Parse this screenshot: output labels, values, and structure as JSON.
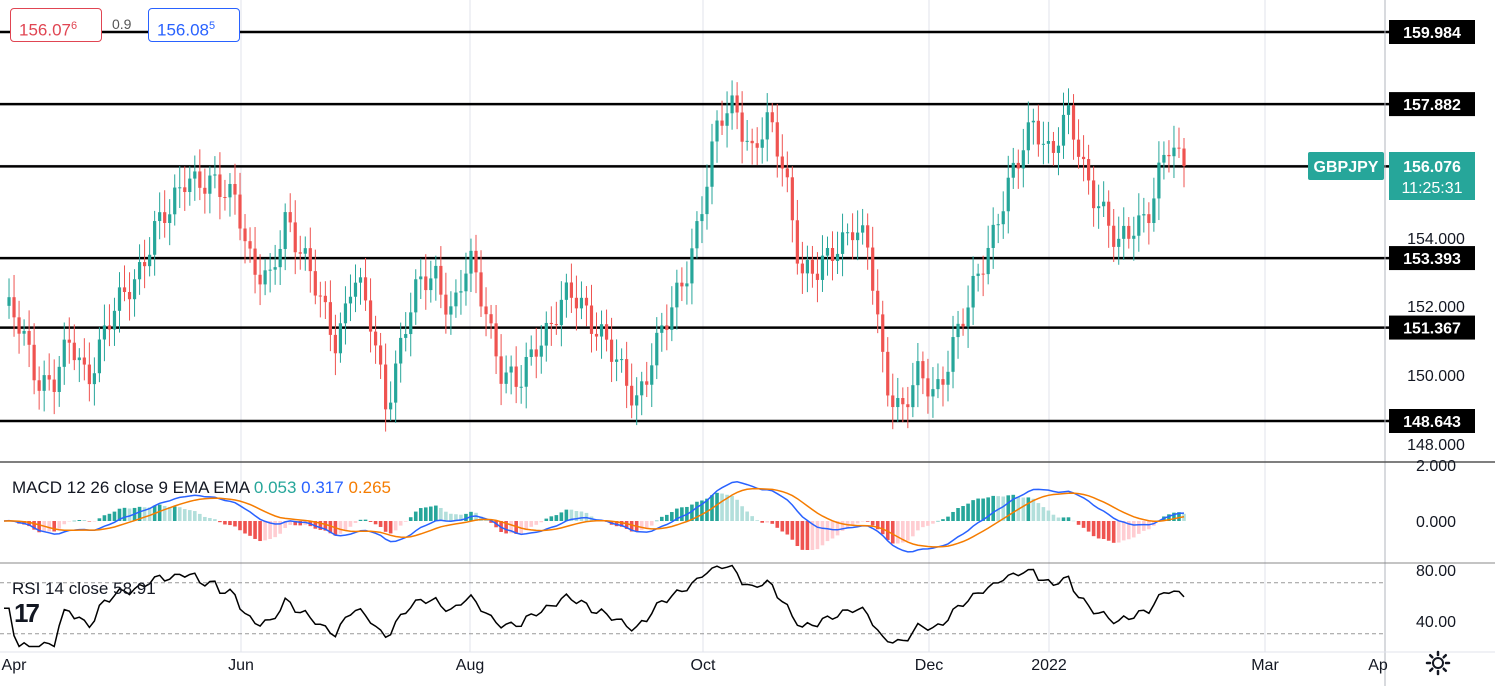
{
  "symbol": "GBPJPY",
  "bid": {
    "main": "156.07",
    "small": "6"
  },
  "ask": {
    "main": "156.08",
    "small": "5"
  },
  "spread": "0.9",
  "last_price": "156.076",
  "countdown": "11:25:31",
  "colors": {
    "up": "#26a69a",
    "down": "#ef5350",
    "macd": "#2962ff",
    "signal": "#f57c00",
    "rsi": "#000000",
    "symbol_label": "#26a69a"
  },
  "macd_legend": {
    "label": "MACD 12 26 close 9 EMA EMA",
    "hist": "0.053",
    "macd": "0.317",
    "signal": "0.265"
  },
  "rsi_legend": {
    "label": "RSI 14 close",
    "value": "58.91"
  },
  "chart_data": {
    "type": "candlestick",
    "price_axis": {
      "ticks": [
        "154.000",
        "152.000",
        "150.000",
        "148.000"
      ],
      "range": [
        147.4,
        161.0
      ]
    },
    "x_ticks": [
      "Apr",
      "Jun",
      "Aug",
      "Oct",
      "Dec",
      "2022",
      "Mar",
      "Ap"
    ],
    "horizontal_levels": [
      159.984,
      157.882,
      156.067,
      153.393,
      151.367,
      148.643
    ],
    "close_path": [
      [
        "Apr",
        152.0
      ],
      [
        "Apr",
        151.2
      ],
      [
        "Apr",
        150.0
      ],
      [
        "Apr",
        149.8
      ],
      [
        "Apr",
        150.8
      ],
      [
        "Apr",
        150.0
      ],
      [
        "Apr",
        151.2
      ],
      [
        "Apr",
        152.0
      ],
      [
        "Apr",
        153.0
      ],
      [
        "Apr",
        154.2
      ],
      [
        "Apr",
        154.6
      ],
      [
        "Jun",
        156.0
      ],
      [
        "Jun",
        155.6
      ],
      [
        "Jun",
        155.2
      ],
      [
        "Jun",
        155.3
      ],
      [
        "Jun",
        153.0
      ],
      [
        "Jun",
        152.5
      ],
      [
        "Jun",
        154.8
      ],
      [
        "Jun",
        153.5
      ],
      [
        "Jun",
        152.0
      ],
      [
        "Jun",
        151.0
      ],
      [
        "Jun",
        153.0
      ],
      [
        "Jun",
        151.5
      ],
      [
        "Aug",
        149.2
      ],
      [
        "Aug",
        151.2
      ],
      [
        "Aug",
        152.5
      ],
      [
        "Aug",
        153.0
      ],
      [
        "Aug",
        151.8
      ],
      [
        "Aug",
        153.2
      ],
      [
        "Aug",
        152.0
      ],
      [
        "Aug",
        150.0
      ],
      [
        "Aug",
        149.5
      ],
      [
        "Aug",
        151.0
      ],
      [
        "Aug",
        151.6
      ],
      [
        "Aug",
        152.2
      ],
      [
        "Aug",
        152.0
      ],
      [
        "Aug",
        151.2
      ],
      [
        "Aug",
        150.0
      ],
      [
        "Aug",
        149.3
      ],
      [
        "Oct",
        150.6
      ],
      [
        "Oct",
        151.5
      ],
      [
        "Oct",
        153.0
      ],
      [
        "Oct",
        155.0
      ],
      [
        "Oct",
        157.2
      ],
      [
        "Oct",
        158.0
      ],
      [
        "Oct",
        156.5
      ],
      [
        "Oct",
        157.2
      ],
      [
        "Oct",
        156.0
      ],
      [
        "Oct",
        153.0
      ],
      [
        "Oct",
        152.8
      ],
      [
        "Oct",
        153.8
      ],
      [
        "Oct",
        154.4
      ],
      [
        "Oct",
        153.5
      ],
      [
        "Dec",
        150.0
      ],
      [
        "Dec",
        149.0
      ],
      [
        "Dec",
        149.8
      ],
      [
        "Dec",
        149.5
      ],
      [
        "Dec",
        150.8
      ],
      [
        "Dec",
        151.8
      ],
      [
        "Dec",
        153.5
      ],
      [
        "Dec",
        155.0
      ],
      [
        "Dec",
        156.0
      ],
      [
        "2022",
        157.5
      ],
      [
        "2022",
        156.5
      ],
      [
        "2022",
        157.4
      ],
      [
        "2022",
        156.0
      ],
      [
        "2022",
        155.0
      ],
      [
        "2022",
        153.5
      ],
      [
        "2022",
        154.4
      ],
      [
        "2022",
        155.0
      ],
      [
        "2022",
        156.5
      ],
      [
        "2022",
        156.076
      ]
    ]
  },
  "macd_axis": {
    "ticks": [
      "2.000",
      "0.000"
    ]
  },
  "rsi_axis": {
    "ticks": [
      "80.00",
      "40.00"
    ]
  }
}
